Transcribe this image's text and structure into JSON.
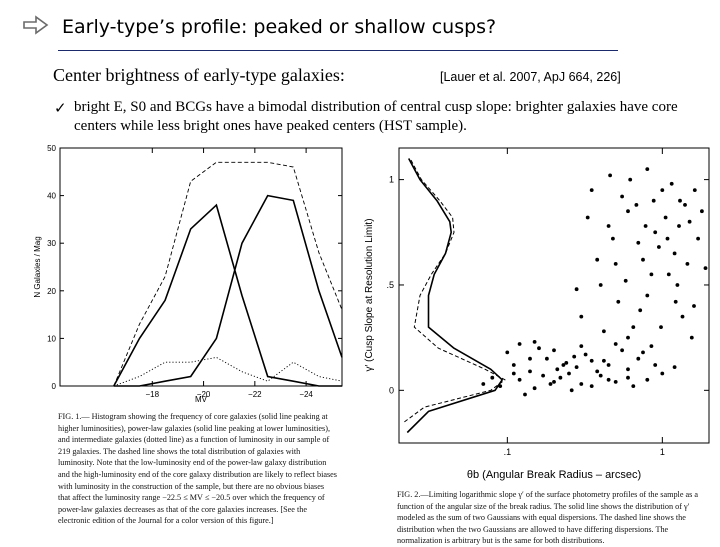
{
  "slide": {
    "title": "Early-type’s profile: peaked or shallow cusps?",
    "subtitle": "Center brightness of  early-type galaxies:",
    "citation": "[Lauer et al. 2007, ApJ 664, 226]",
    "bullet_text": "bright E, S0 and BCGs have a bimodal distribution of central cusp slope: brighter galaxies have core centers while less bright ones have peaked centers (HST sample).",
    "caption_left": "FIG. 1.— Histogram showing the frequency of core galaxies (solid line peaking at higher luminosities), power-law galaxies (solid line peaking at lower luminosities), and intermediate galaxies (dotted line) as a function of luminosity in our sample of 219 galaxies. The dashed line shows the total distribution of galaxies with luminosity. Note that the low-luminosity end of the power-law galaxy distribution and the high-luminosity end of the core galaxy distribution are likely to reflect biases with luminosity in the construction of the sample, but there are no obvious biases that affect the luminosity range −22.5 ≤ MV ≤ −20.5 over which the frequency of power-law galaxies decreases as that of the core galaxies increases. [See the electronic edition of the Journal for a color version of this figure.]",
    "caption_right": "FIG. 2.—Limiting logarithmic slope γ′ of the surface photometry profiles of the sample as a function of the angular size of the break radius. The solid line shows the distribution of γ′ modeled as the sum of two Gaussians with equal dispersions. The dashed line shows the distribution when the two Gaussians are allowed to have differing dispersions. The normalization is arbitrary but is the same for both distributions."
  },
  "colors": {
    "rule": "#1b2a6b",
    "arrow": "#6b6b6b"
  },
  "icons": {
    "arrow": "outline-right-arrow-icon",
    "check": "checkmark-icon"
  },
  "check_glyph": "✓",
  "chart_data": [
    {
      "type": "line",
      "title": "",
      "xlabel": "MV",
      "ylabel": "N Galaxies / Mag",
      "xlim": [
        -14.4,
        -25.4
      ],
      "ylim": [
        0,
        50
      ],
      "xticks": [
        -18,
        -20,
        -22,
        -24
      ],
      "xtick_labels": [
        "−18",
        "−20",
        "−22",
        "−24"
      ],
      "yticks": [
        0,
        10,
        20,
        30,
        40,
        50
      ],
      "x": [
        -16.5,
        -17.5,
        -18.5,
        -19.5,
        -20.5,
        -21.5,
        -22.5,
        -23.5,
        -24.5,
        -25.5
      ],
      "series": [
        {
          "name": "power-law (solid)",
          "style": "solid",
          "values": [
            0,
            10,
            18,
            33,
            38,
            19,
            2,
            1,
            0,
            0
          ]
        },
        {
          "name": "core (solid)",
          "style": "solid",
          "values": [
            0,
            0,
            1,
            2,
            10,
            30,
            40,
            39,
            20,
            6
          ]
        },
        {
          "name": "intermediate (dotted)",
          "style": "dotted",
          "values": [
            0,
            2,
            5,
            5,
            6,
            3,
            1,
            5,
            2,
            1
          ]
        },
        {
          "name": "total (dashed)",
          "style": "dashed",
          "values": [
            0,
            13,
            23,
            43,
            47,
            47,
            47,
            46,
            28,
            16
          ]
        }
      ]
    },
    {
      "type": "scatter",
      "title": "",
      "xlabel": "θb (Angular Break Radius – arcsec)",
      "ylabel": "γ′ (Cusp Slope at Resolution Limit)",
      "x_scale": "log",
      "xlim": [
        0.02,
        2.0
      ],
      "ylim": [
        -0.25,
        1.15
      ],
      "xticks": [
        0.1,
        1
      ],
      "xtick_labels": [
        ".1",
        "1"
      ],
      "yticks": [
        0,
        0.5,
        1
      ],
      "ytick_labels": [
        "0",
        ".5",
        "1"
      ],
      "points": [
        [
          0.09,
          0.02
        ],
        [
          0.12,
          0.05
        ],
        [
          0.15,
          0.01
        ],
        [
          0.2,
          0.04
        ],
        [
          0.25,
          0.08
        ],
        [
          0.3,
          0.03
        ],
        [
          0.11,
          0.12
        ],
        [
          0.14,
          0.09
        ],
        [
          0.18,
          0.15
        ],
        [
          0.22,
          0.06
        ],
        [
          0.28,
          0.11
        ],
        [
          0.35,
          0.02
        ],
        [
          0.4,
          0.07
        ],
        [
          0.5,
          0.04
        ],
        [
          0.6,
          0.1
        ],
        [
          0.8,
          0.05
        ],
        [
          1.0,
          0.08
        ],
        [
          0.13,
          -0.02
        ],
        [
          0.17,
          0.07
        ],
        [
          0.24,
          0.13
        ],
        [
          0.45,
          0.12
        ],
        [
          0.7,
          0.15
        ],
        [
          0.1,
          0.18
        ],
        [
          0.16,
          0.2
        ],
        [
          0.32,
          0.17
        ],
        [
          0.55,
          0.19
        ],
        [
          0.08,
          0.06
        ],
        [
          0.19,
          0.03
        ],
        [
          0.26,
          0.0
        ],
        [
          0.38,
          0.09
        ],
        [
          0.65,
          0.02
        ],
        [
          0.9,
          0.12
        ],
        [
          0.12,
          0.22
        ],
        [
          0.21,
          0.1
        ],
        [
          0.42,
          0.14
        ],
        [
          0.75,
          0.18
        ],
        [
          0.3,
          0.21
        ],
        [
          0.5,
          0.22
        ],
        [
          0.14,
          0.15
        ],
        [
          0.27,
          0.16
        ],
        [
          0.07,
          0.03
        ],
        [
          0.35,
          0.14
        ],
        [
          0.6,
          0.06
        ],
        [
          1.2,
          0.11
        ],
        [
          0.2,
          0.19
        ],
        [
          0.11,
          0.08
        ],
        [
          0.15,
          0.23
        ],
        [
          0.85,
          0.21
        ],
        [
          0.45,
          0.05
        ],
        [
          0.23,
          0.12
        ],
        [
          0.8,
          1.05
        ],
        [
          1.0,
          0.95
        ],
        [
          1.3,
          0.9
        ],
        [
          0.6,
          0.85
        ],
        [
          1.5,
          0.8
        ],
        [
          0.9,
          0.75
        ],
        [
          0.7,
          0.7
        ],
        [
          1.2,
          0.65
        ],
        [
          0.5,
          0.6
        ],
        [
          1.1,
          0.55
        ],
        [
          0.4,
          0.5
        ],
        [
          0.8,
          0.45
        ],
        [
          1.6,
          0.4
        ],
        [
          0.3,
          0.35
        ],
        [
          0.65,
          0.3
        ],
        [
          1.4,
          0.88
        ],
        [
          0.55,
          0.92
        ],
        [
          1.05,
          0.82
        ],
        [
          0.75,
          0.62
        ],
        [
          1.25,
          0.5
        ],
        [
          0.45,
          0.78
        ],
        [
          0.95,
          0.68
        ],
        [
          1.7,
          0.72
        ],
        [
          0.35,
          0.95
        ],
        [
          0.62,
          1.0
        ],
        [
          1.15,
          0.98
        ],
        [
          0.85,
          0.55
        ],
        [
          1.45,
          0.6
        ],
        [
          0.52,
          0.42
        ],
        [
          1.8,
          0.85
        ],
        [
          0.72,
          0.38
        ],
        [
          1.35,
          0.35
        ],
        [
          0.42,
          0.28
        ],
        [
          0.98,
          0.3
        ],
        [
          1.55,
          0.25
        ],
        [
          0.6,
          0.25
        ],
        [
          0.28,
          0.48
        ],
        [
          0.48,
          0.72
        ],
        [
          1.9,
          0.58
        ],
        [
          0.33,
          0.82
        ],
        [
          0.88,
          0.9
        ],
        [
          1.08,
          0.72
        ],
        [
          0.58,
          0.52
        ],
        [
          1.22,
          0.42
        ],
        [
          0.38,
          0.62
        ],
        [
          0.68,
          0.88
        ],
        [
          1.62,
          0.95
        ],
        [
          0.78,
          0.78
        ],
        [
          0.46,
          1.02
        ],
        [
          1.28,
          0.78
        ]
      ],
      "curves": [
        {
          "name": "two Gaussians, equal dispersions (solid)",
          "style": "solid",
          "gamma": [
            -0.2,
            -0.1,
            0,
            0.05,
            0.1,
            0.2,
            0.3,
            0.45,
            0.55,
            0.65,
            0.75,
            0.8,
            0.9,
            1.0,
            1.1
          ],
          "density": [
            0.3,
            1.8,
            6.5,
            7.0,
            6.2,
            3.6,
            1.8,
            1.8,
            2.2,
            3.0,
            3.4,
            3.3,
            2.4,
            1.2,
            0.4
          ]
        },
        {
          "name": "two Gaussians, differing dispersions (dashed)",
          "style": "dashed",
          "gamma": [
            -0.15,
            -0.08,
            0,
            0.05,
            0.1,
            0.2,
            0.3,
            0.45,
            0.55,
            0.65,
            0.75,
            0.82,
            0.9,
            1.0,
            1.1
          ],
          "density": [
            0.1,
            1.5,
            6.2,
            7.2,
            5.8,
            2.5,
            0.8,
            1.2,
            2.0,
            3.0,
            3.6,
            3.5,
            2.6,
            1.3,
            0.5
          ]
        }
      ]
    }
  ]
}
